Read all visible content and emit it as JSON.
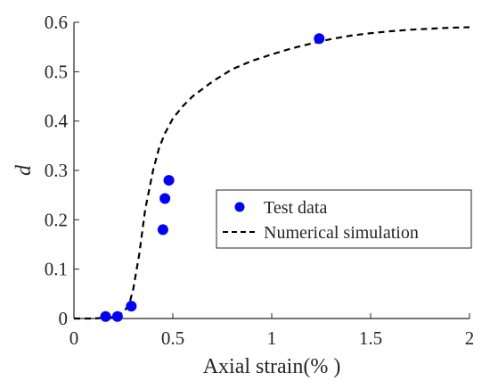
{
  "chart_data": {
    "type": "scatter",
    "title": "",
    "xlabel": "Axial strain(% )",
    "ylabel": "d",
    "xlim": [
      0,
      2
    ],
    "ylim": [
      0,
      0.6
    ],
    "x_ticks": [
      0,
      0.5,
      1,
      1.5,
      2
    ],
    "x_tick_labels": [
      "0",
      "0.5",
      "1",
      "1.5",
      "2"
    ],
    "y_ticks": [
      0,
      0.1,
      0.2,
      0.3,
      0.4,
      0.5,
      0.6
    ],
    "y_tick_labels": [
      "0",
      "0.1",
      "0.2",
      "0.3",
      "0.4",
      "0.5",
      "0.6"
    ],
    "grid": false,
    "legend_position": "center-right",
    "series": [
      {
        "name": "Test data",
        "style": "markers",
        "color": "#0000ff",
        "x": [
          0.16,
          0.22,
          0.29,
          0.45,
          0.46,
          0.48,
          1.24
        ],
        "y": [
          0.004,
          0.004,
          0.025,
          0.18,
          0.243,
          0.28,
          0.567
        ]
      },
      {
        "name": "Numerical simulation",
        "style": "dashed-line",
        "color": "#000000",
        "x": [
          0,
          0.1,
          0.2,
          0.25,
          0.28,
          0.3,
          0.33,
          0.36,
          0.4,
          0.43,
          0.46,
          0.5,
          0.55,
          0.6,
          0.7,
          0.8,
          0.9,
          1.0,
          1.1,
          1.2,
          1.3,
          1.4,
          1.5,
          1.6,
          1.7,
          1.8,
          1.9,
          2.0
        ],
        "y": [
          0,
          0,
          0.003,
          0.012,
          0.03,
          0.06,
          0.13,
          0.22,
          0.3,
          0.345,
          0.375,
          0.405,
          0.43,
          0.45,
          0.48,
          0.505,
          0.522,
          0.535,
          0.547,
          0.557,
          0.566,
          0.573,
          0.578,
          0.582,
          0.585,
          0.587,
          0.589,
          0.59
        ]
      }
    ]
  }
}
